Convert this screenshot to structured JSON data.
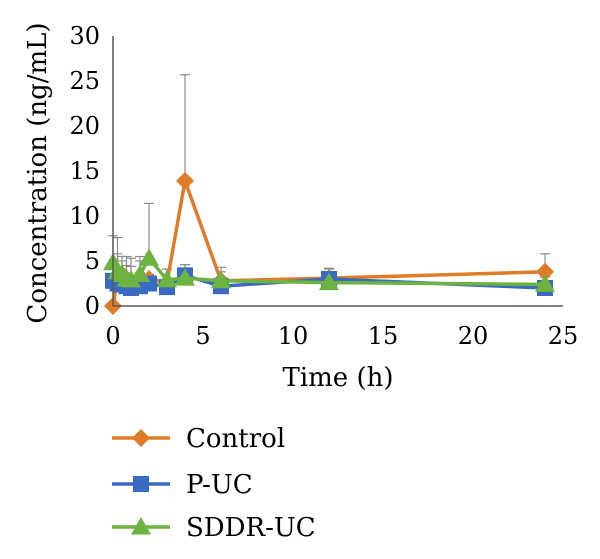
{
  "chart_data": {
    "type": "line",
    "title": "",
    "xlabel": "Time (h)",
    "ylabel": "Concentration (ng/mL)",
    "xlim": [
      0,
      25
    ],
    "ylim": [
      0,
      30
    ],
    "xticks": [
      "0",
      "5",
      "10",
      "15",
      "20",
      "25"
    ],
    "yticks": [
      "0",
      "5",
      "10",
      "15",
      "20",
      "25",
      "30"
    ],
    "grid": false,
    "legend_position": "bottom",
    "series": [
      {
        "name": "Control",
        "color": "#E07B28",
        "marker": "diamond",
        "x": [
          0,
          0.25,
          0.5,
          0.75,
          1,
          1.5,
          2,
          3,
          4,
          6,
          12,
          24
        ],
        "y": [
          0,
          3.2,
          3.5,
          3.0,
          2.8,
          3.0,
          3.0,
          2.6,
          13.9,
          2.8,
          3.1,
          3.8
        ],
        "error": [
          0,
          4.4,
          2.0,
          2.5,
          2.5,
          2.5,
          0,
          1.5,
          11.8,
          1.5,
          1.0,
          2.0
        ]
      },
      {
        "name": "P-UC",
        "color": "#3A6BC4",
        "marker": "square",
        "x": [
          0,
          0.25,
          0.5,
          0.75,
          1,
          1.5,
          2,
          3,
          4,
          6,
          12,
          24
        ],
        "y": [
          2.8,
          2.5,
          2.4,
          2.2,
          2.0,
          2.2,
          2.5,
          2.1,
          3.4,
          2.2,
          3.0,
          2.0
        ],
        "error": [
          2.0,
          1.5,
          1.2,
          1.0,
          1.0,
          1.5,
          1.0,
          0.8,
          1.2,
          0.8,
          1.2,
          0.8
        ]
      },
      {
        "name": "SDDR-UC",
        "color": "#6DB33F",
        "marker": "triangle",
        "x": [
          0,
          0.25,
          0.5,
          0.75,
          1,
          1.5,
          2,
          3,
          4,
          6,
          12,
          24
        ],
        "y": [
          4.8,
          3.8,
          3.5,
          3.0,
          2.9,
          3.5,
          5.3,
          2.9,
          3.1,
          2.8,
          2.6,
          2.4
        ],
        "error": [
          3.0,
          2.0,
          1.5,
          1.5,
          1.5,
          1.5,
          6.1,
          1.2,
          1.5,
          1.0,
          1.2,
          0.8
        ]
      }
    ]
  }
}
